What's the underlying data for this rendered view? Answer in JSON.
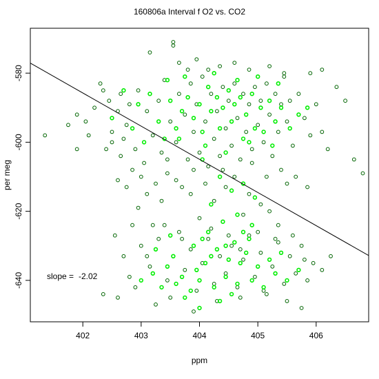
{
  "chart_data": {
    "type": "scatter",
    "title": "160806a   Interval f O2 vs. CO2",
    "xlabel": "ppm",
    "ylabel": "per meg",
    "xlim": [
      401.1,
      406.9
    ],
    "ylim": [
      -652,
      -567
    ],
    "x_ticks": [
      402,
      403,
      404,
      405,
      406
    ],
    "y_ticks": [
      -580,
      -600,
      -620,
      -640
    ],
    "x_tick_labels": [
      "402",
      "403",
      "404",
      "405",
      "406"
    ],
    "y_tick_labels": [
      "-580",
      "-600",
      "-620",
      "-640"
    ],
    "annotation": {
      "label": "slope = ",
      "value": "-2.02"
    },
    "fit_line": {
      "slope": -2.02,
      "x": [
        401.1,
        406.9
      ],
      "y": [
        -577.1,
        -632.8
      ]
    },
    "grid": false,
    "marker": "open-circle",
    "colors": {
      "series_a": "#006400",
      "series_b": "#00ee00",
      "fit": "#000000"
    },
    "series": [
      {
        "color": "#006400",
        "points": [
          [
            401.35,
            -598
          ],
          [
            401.75,
            -595
          ],
          [
            401.9,
            -592
          ],
          [
            402.05,
            -594
          ],
          [
            402.2,
            -590
          ],
          [
            402.3,
            -583
          ],
          [
            402.35,
            -585
          ],
          [
            402.45,
            -588
          ],
          [
            402.5,
            -597
          ],
          [
            402.6,
            -591
          ],
          [
            402.65,
            -586
          ],
          [
            402.7,
            -599
          ],
          [
            402.75,
            -595
          ],
          [
            402.8,
            -589
          ],
          [
            402.85,
            -608
          ],
          [
            402.9,
            -602
          ],
          [
            402.95,
            -585
          ],
          [
            403.0,
            -610
          ],
          [
            403.05,
            -606
          ],
          [
            403.1,
            -591
          ],
          [
            403.15,
            -574
          ],
          [
            403.2,
            -598
          ],
          [
            403.25,
            -612
          ],
          [
            403.3,
            -588
          ],
          [
            403.35,
            -603
          ],
          [
            403.4,
            -582
          ],
          [
            403.45,
            -609
          ],
          [
            403.5,
            -594
          ],
          [
            403.55,
            -571
          ],
          [
            403.6,
            -600
          ],
          [
            403.65,
            -586
          ],
          [
            403.7,
            -613
          ],
          [
            403.75,
            -592
          ],
          [
            403.8,
            -605
          ],
          [
            403.85,
            -583
          ],
          [
            403.9,
            -597
          ],
          [
            403.95,
            -589
          ],
          [
            404.0,
            -603
          ],
          [
            404.05,
            -581
          ],
          [
            404.1,
            -594
          ],
          [
            404.15,
            -607
          ],
          [
            404.2,
            -586
          ],
          [
            404.25,
            -599
          ],
          [
            404.3,
            -591
          ],
          [
            404.35,
            -604
          ],
          [
            404.4,
            -584
          ],
          [
            404.45,
            -596
          ],
          [
            404.5,
            -588
          ],
          [
            404.55,
            -601
          ],
          [
            404.6,
            -583
          ],
          [
            404.65,
            -593
          ],
          [
            404.7,
            -605
          ],
          [
            404.75,
            -586
          ],
          [
            404.8,
            -597
          ],
          [
            404.85,
            -589
          ],
          [
            404.9,
            -602
          ],
          [
            404.95,
            -584
          ],
          [
            405.0,
            -595
          ],
          [
            405.05,
            -588
          ],
          [
            405.1,
            -600
          ],
          [
            405.15,
            -583
          ],
          [
            405.2,
            -592
          ],
          [
            405.25,
            -604
          ],
          [
            405.3,
            -586
          ],
          [
            405.35,
            -597
          ],
          [
            405.4,
            -589
          ],
          [
            405.45,
            -581
          ],
          [
            405.5,
            -594
          ],
          [
            405.55,
            -588
          ],
          [
            405.6,
            -601
          ],
          [
            405.7,
            -586
          ],
          [
            405.8,
            -593
          ],
          [
            405.9,
            -598
          ],
          [
            406.0,
            -589
          ],
          [
            406.1,
            -597
          ],
          [
            406.2,
            -602
          ],
          [
            406.35,
            -584
          ],
          [
            406.5,
            -588
          ],
          [
            406.65,
            -605
          ],
          [
            406.8,
            -609
          ],
          [
            406.1,
            -579
          ],
          [
            405.9,
            -580
          ],
          [
            405.45,
            -580
          ],
          [
            403.55,
            -572
          ],
          [
            403.1,
            -615
          ],
          [
            402.6,
            -611
          ],
          [
            402.75,
            -613
          ],
          [
            403.2,
            -624
          ],
          [
            403.35,
            -617
          ],
          [
            402.95,
            -619
          ],
          [
            403.6,
            -611
          ],
          [
            403.9,
            -608
          ],
          [
            404.1,
            -612
          ],
          [
            404.25,
            -617
          ],
          [
            404.45,
            -613
          ],
          [
            404.6,
            -610
          ],
          [
            404.75,
            -621
          ],
          [
            404.85,
            -615
          ],
          [
            405.05,
            -618
          ],
          [
            405.2,
            -620
          ],
          [
            405.35,
            -624
          ],
          [
            405.5,
            -612
          ],
          [
            405.65,
            -610
          ],
          [
            405.85,
            -613
          ],
          [
            402.55,
            -627
          ],
          [
            402.7,
            -633
          ],
          [
            402.85,
            -624
          ],
          [
            403.0,
            -630
          ],
          [
            403.15,
            -636
          ],
          [
            403.3,
            -628
          ],
          [
            403.45,
            -640
          ],
          [
            403.55,
            -633
          ],
          [
            403.65,
            -626
          ],
          [
            403.75,
            -637
          ],
          [
            403.85,
            -631
          ],
          [
            403.95,
            -643
          ],
          [
            404.05,
            -635
          ],
          [
            404.15,
            -628
          ],
          [
            404.25,
            -641
          ],
          [
            404.35,
            -633
          ],
          [
            404.45,
            -638
          ],
          [
            404.55,
            -630
          ],
          [
            404.65,
            -642
          ],
          [
            404.75,
            -634
          ],
          [
            404.85,
            -627
          ],
          [
            404.95,
            -639
          ],
          [
            405.05,
            -632
          ],
          [
            405.15,
            -644
          ],
          [
            405.25,
            -636
          ],
          [
            405.35,
            -629
          ],
          [
            405.45,
            -641
          ],
          [
            405.55,
            -633
          ],
          [
            405.65,
            -638
          ],
          [
            405.75,
            -630
          ],
          [
            405.85,
            -640
          ],
          [
            405.95,
            -635
          ],
          [
            406.1,
            -637
          ],
          [
            406.25,
            -633
          ],
          [
            402.35,
            -644
          ],
          [
            402.6,
            -645
          ],
          [
            402.8,
            -639
          ],
          [
            403.25,
            -647
          ],
          [
            403.5,
            -645
          ],
          [
            403.9,
            -649
          ],
          [
            404.3,
            -646
          ],
          [
            404.7,
            -645
          ],
          [
            405.1,
            -643
          ],
          [
            405.5,
            -646
          ],
          [
            405.75,
            -648
          ],
          [
            402.9,
            -642
          ],
          [
            403.1,
            -633
          ],
          [
            403.4,
            -624
          ],
          [
            403.7,
            -628
          ],
          [
            404.0,
            -622
          ],
          [
            404.2,
            -625
          ],
          [
            404.5,
            -627
          ],
          [
            404.7,
            -631
          ],
          [
            405.0,
            -626
          ],
          [
            405.3,
            -628
          ],
          [
            405.6,
            -627
          ],
          [
            405.8,
            -634
          ],
          [
            403.85,
            -615
          ],
          [
            404.4,
            -608
          ],
          [
            404.9,
            -606
          ],
          [
            405.15,
            -610
          ],
          [
            405.4,
            -608
          ],
          [
            403.45,
            -605
          ],
          [
            402.5,
            -600
          ],
          [
            402.4,
            -602
          ],
          [
            402.65,
            -604
          ],
          [
            401.9,
            -602
          ],
          [
            402.1,
            -598
          ],
          [
            403.65,
            -577
          ],
          [
            403.95,
            -576
          ],
          [
            404.35,
            -578
          ],
          [
            404.6,
            -577
          ],
          [
            405.2,
            -578
          ],
          [
            404.85,
            -579
          ],
          [
            403.8,
            -579
          ],
          [
            404.15,
            -579
          ]
        ]
      },
      {
        "color": "#00ee00",
        "points": [
          [
            402.5,
            -593
          ],
          [
            402.7,
            -585
          ],
          [
            402.85,
            -596
          ],
          [
            402.95,
            -589
          ],
          [
            403.05,
            -600
          ],
          [
            403.15,
            -586
          ],
          [
            403.3,
            -594
          ],
          [
            403.4,
            -599
          ],
          [
            403.5,
            -588
          ],
          [
            403.6,
            -596
          ],
          [
            403.7,
            -591
          ],
          [
            403.8,
            -587
          ],
          [
            403.9,
            -593
          ],
          [
            404.0,
            -589
          ],
          [
            404.05,
            -597
          ],
          [
            404.15,
            -584
          ],
          [
            404.2,
            -591
          ],
          [
            404.3,
            -587
          ],
          [
            404.35,
            -596
          ],
          [
            404.4,
            -590
          ],
          [
            404.5,
            -585
          ],
          [
            404.55,
            -594
          ],
          [
            404.6,
            -589
          ],
          [
            404.7,
            -587
          ],
          [
            404.75,
            -599
          ],
          [
            404.8,
            -592
          ],
          [
            404.9,
            -586
          ],
          [
            404.95,
            -596
          ],
          [
            405.05,
            -590
          ],
          [
            405.1,
            -597
          ],
          [
            405.2,
            -588
          ],
          [
            405.3,
            -594
          ],
          [
            405.4,
            -590
          ],
          [
            405.55,
            -596
          ],
          [
            405.7,
            -592
          ],
          [
            405.85,
            -590
          ],
          [
            403.45,
            -582
          ],
          [
            403.75,
            -581
          ],
          [
            404.25,
            -580
          ],
          [
            404.65,
            -582
          ],
          [
            405.0,
            -581
          ],
          [
            405.35,
            -583
          ],
          [
            403.65,
            -599
          ],
          [
            404.1,
            -601
          ],
          [
            404.45,
            -603
          ],
          [
            404.85,
            -600
          ],
          [
            405.25,
            -601
          ],
          [
            404.05,
            -605
          ],
          [
            404.35,
            -610
          ],
          [
            404.55,
            -614
          ],
          [
            404.75,
            -612
          ],
          [
            404.95,
            -616
          ],
          [
            404.2,
            -618
          ],
          [
            404.65,
            -621
          ],
          [
            404.9,
            -624
          ],
          [
            404.4,
            -623
          ],
          [
            404.15,
            -626
          ],
          [
            404.6,
            -629
          ],
          [
            404.85,
            -628
          ],
          [
            404.3,
            -631
          ],
          [
            404.5,
            -634
          ],
          [
            404.8,
            -632
          ],
          [
            404.1,
            -635
          ],
          [
            403.95,
            -637
          ],
          [
            403.7,
            -639
          ],
          [
            403.45,
            -636
          ],
          [
            403.2,
            -638
          ],
          [
            403.0,
            -640
          ],
          [
            403.35,
            -642
          ],
          [
            403.6,
            -641
          ],
          [
            403.85,
            -643
          ],
          [
            404.0,
            -640
          ],
          [
            404.25,
            -642
          ],
          [
            404.45,
            -639
          ],
          [
            404.65,
            -641
          ],
          [
            404.9,
            -640
          ],
          [
            405.1,
            -642
          ],
          [
            405.3,
            -638
          ],
          [
            405.5,
            -640
          ],
          [
            405.7,
            -637
          ],
          [
            404.55,
            -644
          ],
          [
            404.35,
            -646
          ],
          [
            403.75,
            -645
          ],
          [
            403.55,
            -633
          ],
          [
            404.7,
            -635
          ],
          [
            405.0,
            -636
          ],
          [
            405.2,
            -634
          ],
          [
            403.25,
            -631
          ],
          [
            403.9,
            -630
          ],
          [
            404.05,
            -628
          ],
          [
            404.75,
            -626
          ],
          [
            403.5,
            -627
          ],
          [
            404.2,
            -633
          ],
          [
            404.45,
            -630
          ],
          [
            405.4,
            -632
          ],
          [
            404.0,
            -648
          ]
        ]
      }
    ]
  }
}
